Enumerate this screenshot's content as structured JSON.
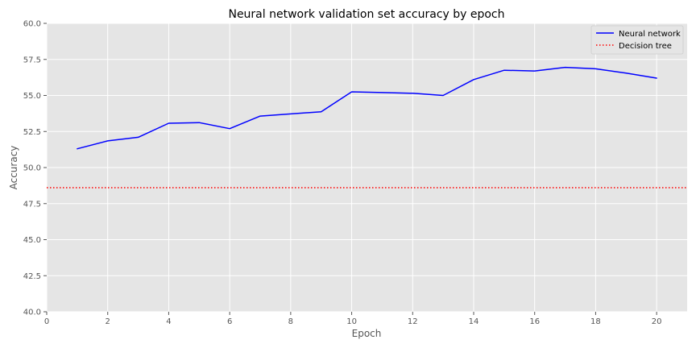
{
  "chart_data": {
    "type": "line",
    "title": "Neural network validation set accuracy by epoch",
    "xlabel": "Epoch",
    "ylabel": "Accuracy",
    "xlim": [
      0,
      21
    ],
    "ylim": [
      40.0,
      60.0
    ],
    "xticks": [
      0,
      2,
      4,
      6,
      8,
      10,
      12,
      14,
      16,
      18,
      20
    ],
    "yticks": [
      40.0,
      42.5,
      45.0,
      47.5,
      50.0,
      52.5,
      55.0,
      57.5,
      60.0
    ],
    "grid": true,
    "legend_position": "top-right",
    "series": [
      {
        "name": "Neural network",
        "color": "#0000ff",
        "style": "solid",
        "x": [
          1,
          2,
          3,
          4,
          5,
          6,
          7,
          8,
          9,
          10,
          11,
          12,
          13,
          14,
          15,
          16,
          17,
          18,
          19,
          20
        ],
        "y": [
          51.3,
          51.85,
          52.1,
          53.07,
          53.12,
          52.7,
          53.57,
          53.72,
          53.87,
          55.25,
          55.2,
          55.15,
          55.0,
          56.1,
          56.75,
          56.7,
          56.95,
          56.85,
          56.55,
          56.2
        ]
      },
      {
        "name": "Decision tree",
        "color": "#ff0000",
        "style": "dotted",
        "hline": 48.6
      }
    ]
  }
}
